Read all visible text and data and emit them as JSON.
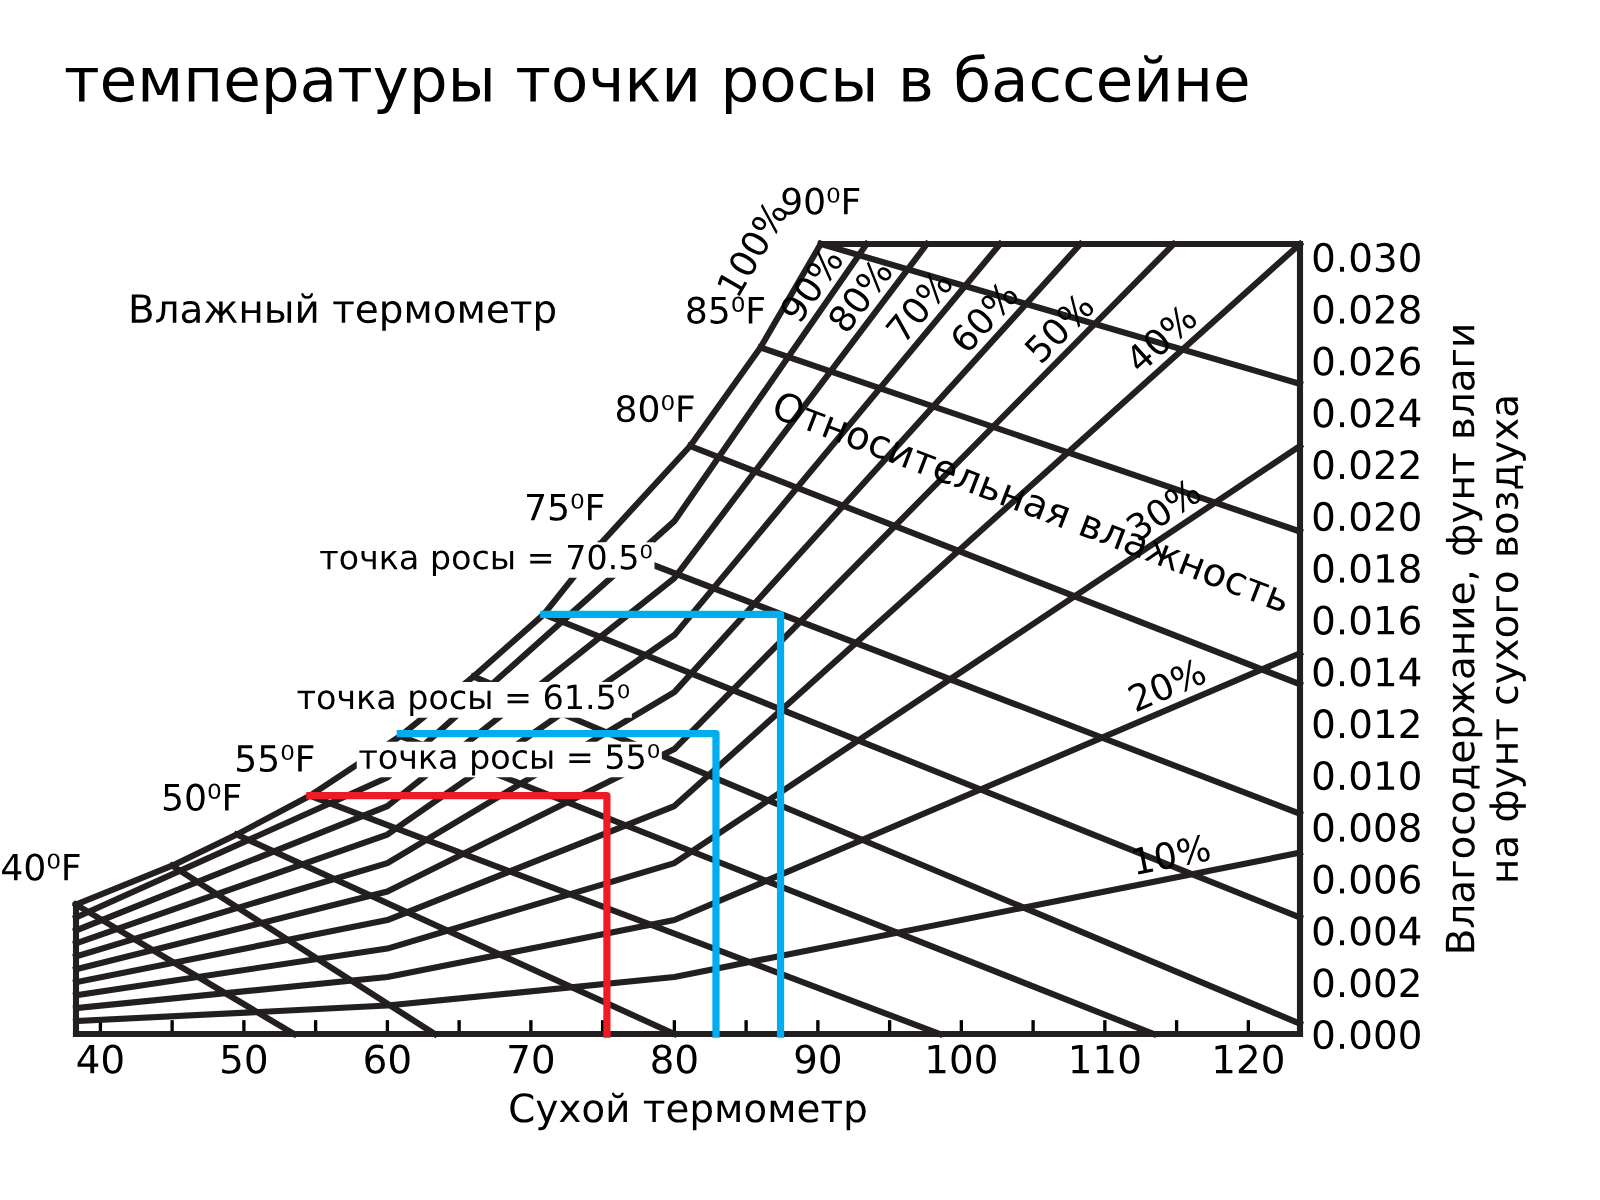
{
  "chart_data": {
    "type": "line",
    "title": "температуры точки росы в бассейне",
    "xlabel": "Сухой термометр",
    "ylabel": "Влагосодержание, фунт влаги\nна фунт сухого воздуха",
    "xlim": [
      38.3,
      123.6
    ],
    "ylim": [
      0,
      0.0305
    ],
    "xticks": [
      40,
      {
        "value": 45,
        "label": null
      },
      50,
      {
        "value": 55,
        "label": null
      },
      60,
      {
        "value": 65,
        "label": null
      },
      70,
      {
        "value": 75,
        "label": null
      },
      80,
      {
        "value": 85,
        "label": null
      },
      90,
      {
        "value": 95,
        "label": null
      },
      100,
      {
        "value": 105,
        "label": null
      },
      110,
      {
        "value": 115,
        "label": null
      },
      120
    ],
    "yticks": [
      {
        "value": 0,
        "label": "0.000"
      },
      0.002,
      0.004,
      0.006,
      0.008,
      {
        "value": 0.01,
        "label": "0.010"
      },
      0.012,
      0.014,
      0.016,
      0.018,
      {
        "value": 0.02,
        "label": "0.020"
      },
      0.022,
      0.024,
      0.026,
      0.028,
      {
        "value": 0.03,
        "label": "0.030"
      }
    ],
    "grid": false,
    "legend": false,
    "marker": "none",
    "line_style": "solid",
    "series": [
      {
        "name": "100%",
        "color": "#231f20",
        "x": [
          38.3,
          45,
          49.5,
          54.6,
          60.9,
          66,
          70.9,
          74.8,
          81.1,
          86,
          90.2
        ],
        "values": [
          0.005,
          0.0065,
          0.0077,
          0.0092,
          0.0115,
          0.0138,
          0.0162,
          0.0189,
          0.0227,
          0.0265,
          0.0305
        ]
      },
      {
        "name": "90%",
        "color": "#231f20",
        "x": [
          38.3,
          60,
          80,
          93.4
        ],
        "values": [
          0.0045,
          0.0099,
          0.0198,
          0.0305
        ]
      },
      {
        "name": "80%",
        "color": "#231f20",
        "x": [
          38.3,
          60,
          80,
          97.6
        ],
        "values": [
          0.004,
          0.0088,
          0.0176,
          0.0305
        ]
      },
      {
        "name": "70%",
        "color": "#231f20",
        "x": [
          38.3,
          60,
          80,
          102.7
        ],
        "values": [
          0.0035,
          0.0077,
          0.0154,
          0.0305
        ]
      },
      {
        "name": "60%",
        "color": "#231f20",
        "x": [
          38.3,
          60,
          80,
          108.3
        ],
        "values": [
          0.003,
          0.0066,
          0.0132,
          0.0305
        ]
      },
      {
        "name": "50%",
        "color": "#231f20",
        "x": [
          38.3,
          60,
          80,
          114.8
        ],
        "values": [
          0.0025,
          0.0055,
          0.011,
          0.0305
        ]
      },
      {
        "name": "40%",
        "color": "#231f20",
        "x": [
          38.3,
          60,
          80,
          123.6
        ],
        "values": [
          0.002,
          0.0044,
          0.0088,
          0.0305
        ]
      },
      {
        "name": "30%",
        "color": "#231f20",
        "x": [
          38.3,
          60,
          80,
          123.6
        ],
        "values": [
          0.0015,
          0.0033,
          0.0066,
          0.0227
        ]
      },
      {
        "name": "20%",
        "color": "#231f20",
        "x": [
          38.3,
          60,
          80,
          123.6
        ],
        "values": [
          0.001,
          0.0022,
          0.0044,
          0.0147
        ]
      },
      {
        "name": "10%",
        "color": "#231f20",
        "x": [
          38.3,
          60,
          80,
          123.6
        ],
        "values": [
          0.0005,
          0.0011,
          0.0022,
          0.007
        ]
      },
      {
        "name": "40⁰F",
        "color": "#231f20",
        "x": [
          38.3,
          53.5
        ],
        "values": [
          0.005,
          0
        ]
      },
      {
        "color": "#231f20",
        "x": [
          45,
          63.3
        ],
        "values": [
          0.0065,
          0
        ]
      },
      {
        "name": "50⁰F",
        "color": "#231f20",
        "x": [
          49.5,
          80
        ],
        "values": [
          0.0077,
          0
        ]
      },
      {
        "name": "55⁰F",
        "color": "#231f20",
        "x": [
          54.6,
          98.5
        ],
        "values": [
          0.0092,
          0
        ]
      },
      {
        "color": "#231f20",
        "x": [
          60.9,
          113.4
        ],
        "values": [
          0.0115,
          0
        ]
      },
      {
        "color": "#231f20",
        "x": [
          66,
          123.6
        ],
        "values": [
          0.0138,
          0.0004
        ]
      },
      {
        "color": "#231f20",
        "x": [
          70.9,
          123.6
        ],
        "values": [
          0.0162,
          0.0045
        ]
      },
      {
        "name": "75⁰F",
        "color": "#231f20",
        "x": [
          74.8,
          123.6
        ],
        "values": [
          0.0189,
          0.0085
        ]
      },
      {
        "name": "80⁰F",
        "color": "#231f20",
        "x": [
          81.1,
          123.6
        ],
        "values": [
          0.0227,
          0.0135
        ]
      },
      {
        "name": "85⁰F",
        "color": "#231f20",
        "x": [
          86,
          123.6
        ],
        "values": [
          0.0265,
          0.0194
        ]
      },
      {
        "name": "90⁰F",
        "color": "#231f20",
        "x": [
          90.2,
          123.6
        ],
        "values": [
          0.0305,
          0.0251
        ]
      },
      {
        "color": "#ed1c24",
        "x": [
          54.6,
          75.3,
          75.3
        ],
        "values": [
          0.0092,
          0.0092,
          0
        ]
      },
      {
        "color": "#00aeef",
        "x": [
          60.9,
          82.9,
          82.9
        ],
        "values": [
          0.0116,
          0.0116,
          0
        ]
      },
      {
        "color": "#00aeef",
        "x": [
          70.9,
          87.4,
          87.4
        ],
        "values": [
          0.0162,
          0.0162,
          0
        ]
      }
    ],
    "annotations": [
      "Влажный термометр",
      "Относительная влажность",
      "точка росы = 70.5⁰",
      "точка росы = 61.5⁰",
      "точка росы = 55⁰"
    ]
  }
}
